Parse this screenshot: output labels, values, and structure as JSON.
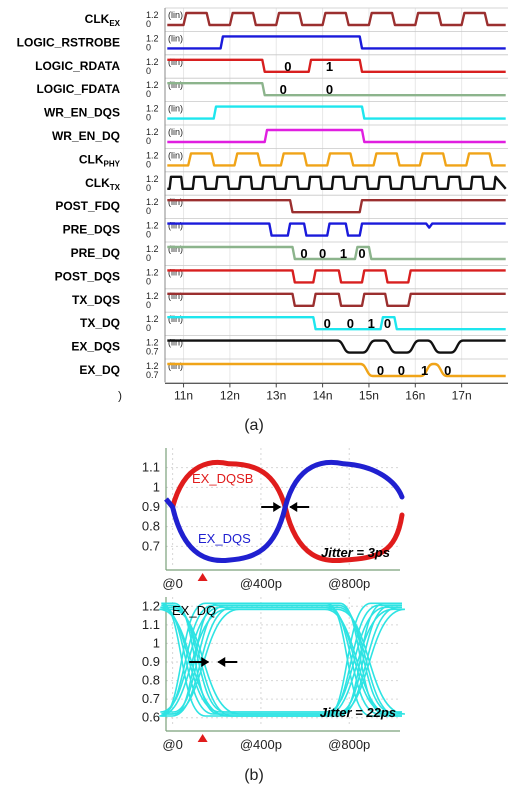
{
  "chart_data": [
    {
      "type": "line",
      "x_unit": "n",
      "xlim": [
        10.6,
        18.0
      ],
      "x_ticks": [
        "11n",
        "12n",
        "13n",
        "14n",
        "15n",
        "16n",
        "17n"
      ],
      "x_tick_values": [
        11,
        12,
        13,
        14,
        15,
        16,
        17
      ],
      "x_axis_partial_label": ")",
      "caption": "(a)",
      "signals": [
        {
          "name": "CLK",
          "sub": "EX",
          "color": "#9b2f2f",
          "hi": "1.2",
          "lo": "0",
          "scale": "(lin)",
          "kind": "clock",
          "period": 1.0,
          "t0": 11.0,
          "duty": 0.5,
          "tmin": 10.6,
          "tmax": 17.9
        },
        {
          "name": "LOGIC_RSTROBE",
          "color": "#1a1adb",
          "hi": "1.2",
          "lo": "0",
          "scale": "(lin)",
          "kind": "steps",
          "init": 0,
          "edges": [
            11.8,
            14.8
          ]
        },
        {
          "name": "LOGIC_RDATA",
          "color": "#d81f1f",
          "hi": "1.2",
          "lo": "0",
          "scale": "(lin)",
          "kind": "steps",
          "init": 1,
          "edges": [
            12.7,
            13.7,
            14.8
          ],
          "bits": [
            {
              "t": 13.25,
              "v": "0"
            },
            {
              "t": 14.15,
              "v": "1"
            }
          ]
        },
        {
          "name": "LOGIC_FDATA",
          "color": "#8cb48c",
          "hi": "1.2",
          "lo": "0",
          "scale": "(lin)",
          "kind": "steps",
          "init": 1,
          "edges": [
            12.7
          ],
          "bits": [
            {
              "t": 13.15,
              "v": "0"
            },
            {
              "t": 14.15,
              "v": "0"
            }
          ]
        },
        {
          "name": "WR_EN_DQS",
          "color": "#1ee6ee",
          "hi": "1.2",
          "lo": "0",
          "scale": "(lin)",
          "kind": "steps",
          "init": 0,
          "edges": [
            11.65,
            14.85
          ]
        },
        {
          "name": "WR_EN_DQ",
          "color": "#e01fe0",
          "hi": "1.2",
          "lo": "0",
          "scale": "(lin)",
          "kind": "steps",
          "init": 0,
          "edges": [
            12.75,
            14.85
          ]
        },
        {
          "name": "CLK",
          "sub": "PHY",
          "color": "#f0a418",
          "hi": "1.2",
          "lo": "0",
          "scale": "(lin)",
          "kind": "clock",
          "period": 1.0,
          "t0": 11.1,
          "duty": 0.5,
          "tmin": 10.6,
          "tmax": 17.9
        },
        {
          "name": "CLK",
          "sub": "TX",
          "color": "#111111",
          "hi": "1.2",
          "lo": "0",
          "scale": "",
          "kind": "clock",
          "period": 0.5,
          "t0": 10.7,
          "duty": 0.5,
          "tmin": 10.6,
          "tmax": 17.9
        },
        {
          "name": "POST_FDQ",
          "color": "#9b2f2f",
          "hi": "1.2",
          "lo": "0",
          "scale": "(lin)",
          "kind": "steps",
          "init": 1,
          "edges": [
            13.3,
            14.8
          ]
        },
        {
          "name": "PRE_DQS",
          "color": "#1a1adb",
          "hi": "1.2",
          "lo": "0",
          "scale": "(lin)",
          "kind": "steps",
          "init": 1,
          "edges": [
            12.85,
            13.25,
            13.6,
            14.1,
            14.5,
            14.8
          ],
          "glitch": 16.3
        },
        {
          "name": "PRE_DQ",
          "color": "#8cb48c",
          "hi": "1.2",
          "lo": "0",
          "scale": "(lin)",
          "kind": "steps",
          "init": 1,
          "edges": [
            13.35,
            14.7,
            15.0
          ],
          "bits": [
            {
              "t": 13.6,
              "v": "0"
            },
            {
              "t": 14.0,
              "v": "0"
            },
            {
              "t": 14.45,
              "v": "1"
            },
            {
              "t": 14.85,
              "v": "0"
            }
          ]
        },
        {
          "name": "POST_DQS",
          "color": "#d81f1f",
          "hi": "1.2",
          "lo": "0",
          "scale": "(lin)",
          "kind": "steps",
          "init": 1,
          "edges": [
            13.35,
            13.8,
            14.35,
            14.85,
            15.35,
            15.85
          ]
        },
        {
          "name": "TX_DQS",
          "color": "#9b2f2f",
          "hi": "1.2",
          "lo": "0",
          "scale": "(lin)",
          "kind": "steps",
          "init": 1,
          "edges": [
            13.35,
            13.8,
            14.35,
            14.85,
            15.35,
            15.85
          ]
        },
        {
          "name": "TX_DQ",
          "color": "#1ee6ee",
          "hi": "1.2",
          "lo": "0",
          "scale": "(lin)",
          "kind": "steps",
          "init": 1,
          "edges": [
            13.8,
            15.25,
            15.55
          ],
          "bits": [
            {
              "t": 14.1,
              "v": "0"
            },
            {
              "t": 14.6,
              "v": "0"
            },
            {
              "t": 15.05,
              "v": "1"
            },
            {
              "t": 15.4,
              "v": "0"
            }
          ]
        },
        {
          "name": "EX_DQS",
          "color": "#111111",
          "hi": "1.2",
          "lo": "0.7",
          "scale": "(lin)",
          "kind": "smooth",
          "init": 1,
          "edges": [
            14.4,
            14.95,
            15.4,
            15.9,
            16.35,
            16.85
          ]
        },
        {
          "name": "EX_DQ",
          "color": "#f0a418",
          "hi": "1.2",
          "lo": "0.7",
          "scale": "(lin)",
          "kind": "smooth",
          "init": 1,
          "edges": [
            14.9,
            16.2,
            16.5
          ],
          "bits": [
            {
              "t": 15.25,
              "v": "0"
            },
            {
              "t": 15.7,
              "v": "0"
            },
            {
              "t": 16.2,
              "v": "1"
            },
            {
              "t": 16.7,
              "v": "0"
            }
          ]
        }
      ]
    },
    {
      "type": "line",
      "caption": "(b)",
      "panels": [
        {
          "name": "dqs-eye",
          "ylim": [
            0.6,
            1.2
          ],
          "y_ticks": [
            "1.1",
            "1",
            "0.9",
            "0.8",
            "0.7"
          ],
          "y_tick_values": [
            1.1,
            1.0,
            0.9,
            0.8,
            0.7
          ],
          "x_ticks": [
            "@0",
            "@400p",
            "@800p"
          ],
          "x_tick_values": [
            0,
            400,
            800
          ],
          "xlim": [
            -30,
            1030
          ],
          "series": [
            {
              "name": "EX_DQSB",
              "color": "#e01c1c",
              "peak": 1.13,
              "low": 0.63,
              "cross": [
                0,
                510
              ]
            },
            {
              "name": "EX_DQS",
              "color": "#2020d0",
              "peak": 1.13,
              "low": 0.63,
              "cross": [
                0,
                510
              ]
            }
          ],
          "crossing_level": 0.9,
          "jitter": "Jitter = 3ps"
        },
        {
          "name": "dq-eye",
          "ylim": [
            0.55,
            1.25
          ],
          "y_ticks": [
            "1.2",
            "1.1",
            "1",
            "0.9",
            "0.8",
            "0.7",
            "0.6"
          ],
          "y_tick_values": [
            1.2,
            1.1,
            1.0,
            0.9,
            0.8,
            0.7,
            0.6
          ],
          "x_ticks": [
            "@0",
            "@400p",
            "@800p"
          ],
          "x_tick_values": [
            0,
            400,
            800
          ],
          "xlim": [
            -30,
            1030
          ],
          "series": [
            {
              "name": "EX_DQ",
              "color": "#2ee3e3",
              "high": 1.2,
              "low": 0.62,
              "cross": [
                320,
                980
              ]
            }
          ],
          "crossing_level": 0.9,
          "jitter": "Jitter = 22ps"
        }
      ]
    }
  ]
}
